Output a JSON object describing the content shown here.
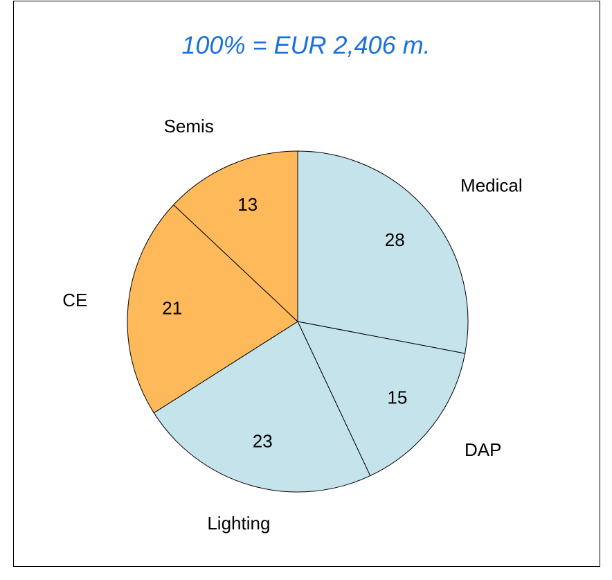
{
  "chart_data": {
    "type": "pie",
    "title": "100% = EUR 2,406 m.",
    "categories": [
      "Medical",
      "DAP",
      "Lighting",
      "CE",
      "Semis"
    ],
    "values": [
      28,
      15,
      23,
      21,
      13
    ],
    "colors": [
      "#c5e3ea",
      "#c5e3ea",
      "#c5e3ea",
      "#fdb95a",
      "#fdb95a"
    ]
  }
}
